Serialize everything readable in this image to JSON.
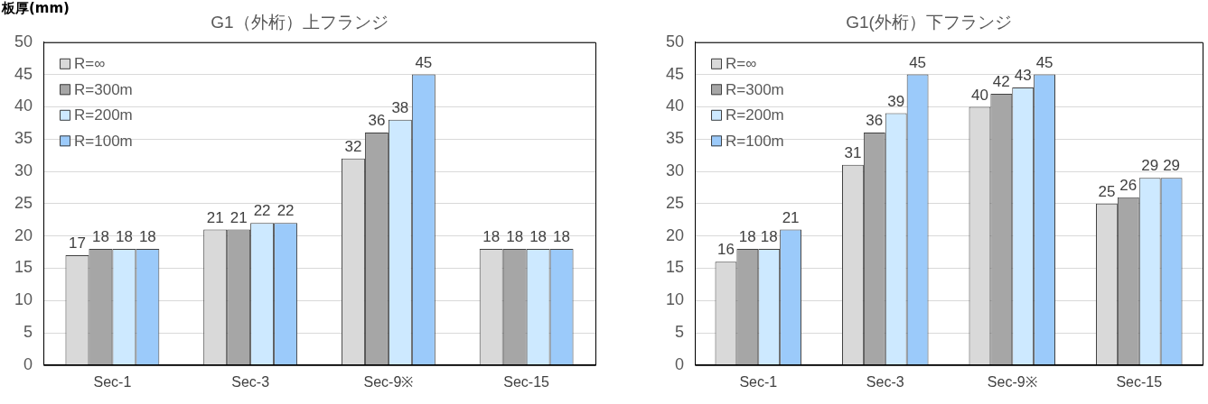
{
  "chart_data": [
    {
      "type": "bar",
      "title": "G1（外桁）上フランジ",
      "ylabel": "板厚(mm)",
      "categories": [
        "Sec-1",
        "Sec-3",
        "Sec-9※",
        "Sec-15"
      ],
      "series": [
        {
          "name": "R=∞",
          "color": "#d9d9d9",
          "values": [
            17,
            21,
            32,
            18
          ]
        },
        {
          "name": "R=300m",
          "color": "#a6a6a6",
          "values": [
            18,
            21,
            36,
            18
          ]
        },
        {
          "name": "R=200m",
          "color": "#cde9ff",
          "values": [
            18,
            22,
            38,
            18
          ]
        },
        {
          "name": "R=100m",
          "color": "#9bcafa",
          "values": [
            18,
            22,
            45,
            18
          ]
        }
      ],
      "ylim": [
        0,
        50
      ],
      "yticks": [
        0,
        5,
        10,
        15,
        20,
        25,
        30,
        35,
        40,
        45,
        50
      ],
      "grid": "y",
      "legend": "top left",
      "data_labels": true
    },
    {
      "type": "bar",
      "title": "G1(外桁）下フランジ",
      "categories": [
        "Sec-1",
        "Sec-3",
        "Sec-9※",
        "Sec-15"
      ],
      "series": [
        {
          "name": "R=∞",
          "color": "#d9d9d9",
          "values": [
            16,
            31,
            40,
            25
          ]
        },
        {
          "name": "R=300m",
          "color": "#a6a6a6",
          "values": [
            18,
            36,
            42,
            26
          ]
        },
        {
          "name": "R=200m",
          "color": "#cde9ff",
          "values": [
            18,
            39,
            43,
            29
          ]
        },
        {
          "name": "R=100m",
          "color": "#9bcafa",
          "values": [
            21,
            45,
            45,
            29
          ]
        }
      ],
      "ylim": [
        0,
        50
      ],
      "yticks": [
        0,
        5,
        10,
        15,
        20,
        25,
        30,
        35,
        40,
        45,
        50
      ],
      "grid": "y",
      "legend": "top left",
      "data_labels": true
    }
  ]
}
